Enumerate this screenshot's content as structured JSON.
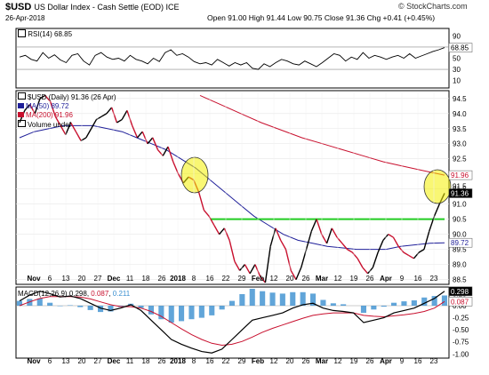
{
  "header": {
    "symbol": "$USD",
    "name": "US Dollar Index - Cash Settle (EOD)  ICE",
    "date": "26-Apr-2018",
    "brand": "© StockCharts.com",
    "quote": "Open 91.00  High 91.44  Low 90.75  Close 91.36  Chg +0.41 (+0.45%)"
  },
  "rsi_panel": {
    "label": "RSI(14) 68.85",
    "current_badge": "68.85",
    "scale": [
      "90",
      "50",
      "30",
      "10"
    ]
  },
  "price_panel": {
    "legend": [
      {
        "text": "$USD (Daily) 91.36 (26 Apr)",
        "color": "#000000"
      },
      {
        "text": "MA(50) 89.72",
        "color": "#1f1f99"
      },
      {
        "text": "MA(200) 91.96",
        "color": "#c8102e"
      },
      {
        "text": "Volume undef",
        "color": "#000000"
      }
    ],
    "scale": [
      "94.5",
      "94.0",
      "93.5",
      "93.0",
      "92.5",
      "92.0",
      "91.5",
      "91.0",
      "90.5",
      "90.0",
      "89.5",
      "89.0",
      "88.5"
    ],
    "badges": {
      "ma200": "91.96",
      "price": "91.36",
      "ma50": "89.72"
    },
    "top_badge": "91.5"
  },
  "macd_panel": {
    "label_prefix": "MACD(12,26,9)",
    "macd_value": "0.298",
    "signal_value": "0.087",
    "hist_value": "0.211",
    "scale": [
      "0.25",
      "0.00",
      "-0.25",
      "-0.50",
      "-0.75",
      "-1.00"
    ],
    "badges": {
      "macd": "0.298",
      "signal": "0.087"
    }
  },
  "x_axis": {
    "ticks": [
      "Nov",
      "6",
      "13",
      "20",
      "27",
      "Dec",
      "11",
      "18",
      "26",
      "2018",
      "8",
      "16",
      "22",
      "29",
      "Feb",
      "12",
      "20",
      "26",
      "Mar",
      "12",
      "19",
      "26",
      "Apr",
      "9",
      "16",
      "23"
    ]
  },
  "colors": {
    "price_up": "#000000",
    "price_down": "#c8102e",
    "ma50": "#1f1f99",
    "ma200": "#c8102e",
    "support_line": "#22cc22",
    "highlight": "#f4f000",
    "histogram": "#3a8fd0"
  },
  "chart_data": [
    {
      "type": "line",
      "title": "RSI(14)",
      "ylim": [
        0,
        100
      ],
      "series": [
        {
          "name": "RSI(14)",
          "values": [
            52,
            55,
            48,
            45,
            60,
            50,
            56,
            47,
            42,
            55,
            58,
            45,
            38,
            55,
            60,
            52,
            48,
            50,
            45,
            55,
            48,
            45,
            40,
            50,
            44,
            60,
            65,
            55,
            58,
            52,
            44,
            40,
            42,
            38,
            48,
            42,
            36,
            42,
            38,
            42,
            32,
            30,
            40,
            35,
            42,
            48,
            45,
            40,
            38,
            45,
            40,
            35,
            42,
            50,
            58,
            55,
            45,
            52,
            48,
            60,
            50,
            55,
            52,
            48,
            52,
            55,
            50,
            58,
            50,
            54,
            58,
            62,
            65,
            68.85
          ]
        }
      ]
    },
    {
      "type": "line",
      "title": "$USD (Daily)",
      "ylim": [
        88.4,
        94.7
      ],
      "series": [
        {
          "name": "$USD (Daily)",
          "values": [
            93.7,
            94.1,
            94.3,
            94.0,
            94.5,
            94.6,
            94.4,
            93.9,
            93.6,
            93.3,
            93.7,
            93.4,
            93.1,
            93.2,
            93.5,
            93.8,
            93.9,
            94.0,
            94.2,
            93.7,
            93.8,
            94.1,
            93.6,
            93.2,
            93.4,
            93.0,
            93.2,
            92.8,
            92.6,
            92.9,
            92.4,
            92.0,
            91.7,
            91.9,
            91.8,
            91.4,
            90.8,
            90.6,
            90.3,
            90.0,
            90.2,
            89.8,
            89.1,
            88.8,
            89.0,
            88.7,
            89.0,
            88.6,
            88.4,
            89.6,
            90.2,
            89.8,
            89.5,
            88.8,
            88.5,
            88.9,
            89.5,
            90.1,
            90.5,
            90.0,
            89.7,
            90.2,
            89.9,
            89.7,
            89.5,
            89.4,
            89.2,
            88.9,
            88.7,
            88.9,
            89.4,
            89.8,
            90.0,
            89.9,
            89.6,
            89.4,
            89.3,
            89.2,
            89.4,
            89.5,
            90.1,
            90.6,
            91.0,
            91.36
          ]
        },
        {
          "name": "MA(50)",
          "values": [
            93.2,
            93.4,
            93.5,
            93.6,
            93.6,
            93.6,
            93.5,
            93.4,
            93.2,
            93.0,
            92.8,
            92.5,
            92.2,
            91.8,
            91.4,
            91.0,
            90.6,
            90.3,
            90.0,
            89.8,
            89.7,
            89.6,
            89.55,
            89.5,
            89.5,
            89.5,
            89.6,
            89.65,
            89.7,
            89.72
          ]
        },
        {
          "name": "MA(200)",
          "values": [
            94.6,
            94.3,
            94.0,
            93.7,
            93.45,
            93.2,
            93.0,
            92.8,
            92.6,
            92.4,
            92.25,
            92.1,
            91.96
          ]
        }
      ],
      "annotations": [
        {
          "type": "horizontal_line",
          "y": 90.5,
          "color": "green"
        },
        {
          "type": "highlight_circle",
          "near": "2018 (early Jan)"
        },
        {
          "type": "highlight_circle",
          "near": "23 (late Apr)"
        }
      ]
    },
    {
      "type": "line",
      "title": "MACD(12,26,9)",
      "ylim": [
        -1.05,
        0.35
      ],
      "series": [
        {
          "name": "MACD",
          "values": [
            0.1,
            0.22,
            0.3,
            0.25,
            0.18,
            0.2,
            0.15,
            0.05,
            -0.05,
            -0.1,
            -0.05,
            0.02,
            -0.1,
            -0.3,
            -0.5,
            -0.7,
            -0.8,
            -0.88,
            -0.95,
            -0.98,
            -0.9,
            -0.7,
            -0.5,
            -0.3,
            -0.25,
            -0.2,
            -0.15,
            -0.05,
            0.02,
            0.05,
            -0.05,
            -0.1,
            -0.12,
            -0.15,
            -0.35,
            -0.3,
            -0.25,
            -0.15,
            -0.1,
            -0.05,
            0.05,
            0.15,
            0.298
          ]
        },
        {
          "name": "Signal",
          "values": [
            0.0,
            0.08,
            0.15,
            0.19,
            0.19,
            0.19,
            0.18,
            0.14,
            0.08,
            0.02,
            -0.02,
            -0.02,
            -0.05,
            -0.12,
            -0.22,
            -0.35,
            -0.48,
            -0.6,
            -0.7,
            -0.78,
            -0.82,
            -0.8,
            -0.74,
            -0.65,
            -0.55,
            -0.47,
            -0.4,
            -0.33,
            -0.26,
            -0.2,
            -0.17,
            -0.15,
            -0.15,
            -0.15,
            -0.2,
            -0.22,
            -0.23,
            -0.21,
            -0.19,
            -0.16,
            -0.12,
            -0.05,
            0.087
          ]
        }
      ]
    }
  ]
}
